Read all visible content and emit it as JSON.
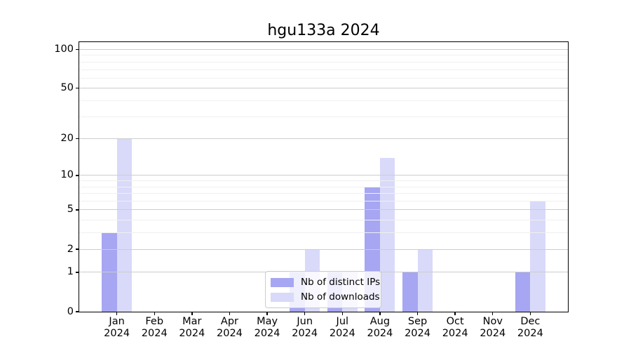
{
  "chart_data": {
    "type": "bar",
    "title": "hgu133a 2024",
    "categories": [
      "Jan",
      "Feb",
      "Mar",
      "Apr",
      "May",
      "Jun",
      "Jul",
      "Aug",
      "Sep",
      "Oct",
      "Nov",
      "Dec"
    ],
    "year": "2024",
    "series": [
      {
        "name": "Nb of distinct IPs",
        "color": "#a6a6f2",
        "values": [
          3,
          0,
          0,
          0,
          0,
          1,
          1,
          8,
          1,
          0,
          0,
          1
        ]
      },
      {
        "name": "Nb of downloads",
        "color": "#d9d9f9",
        "values": [
          20,
          0,
          0,
          0,
          0,
          2,
          1,
          14,
          2,
          0,
          0,
          6
        ]
      }
    ],
    "yscale": "log1p",
    "yticks": [
      0,
      1,
      2,
      5,
      10,
      20,
      50,
      100
    ],
    "ylim": [
      0,
      114
    ],
    "grid": true,
    "legend_position": "lower center",
    "colors": {
      "major_grid": "#cdcdcd",
      "minor_grid": "#f0f0f0",
      "spine": "#000000"
    }
  }
}
